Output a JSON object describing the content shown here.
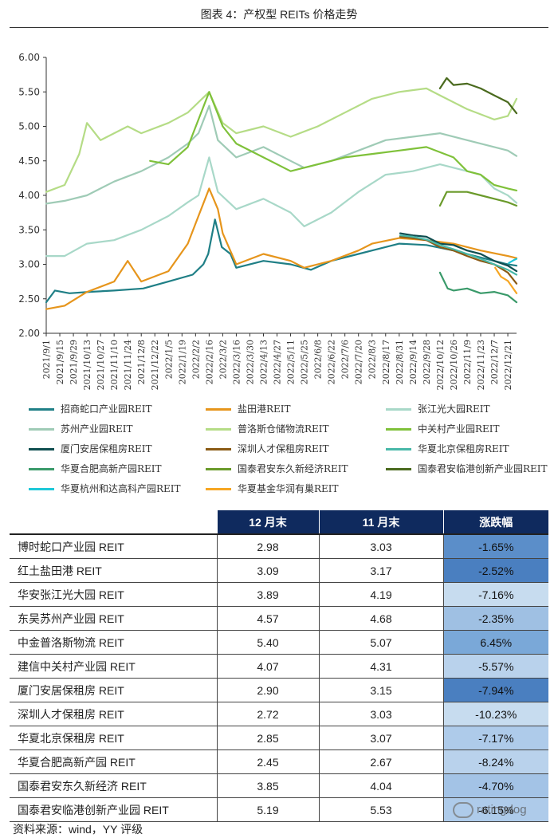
{
  "title": "图表 4：产权型 REITs 价格走势",
  "source": "资料来源：wind，YY 评级",
  "watermark": "ratingdog",
  "chart_data": {
    "type": "line",
    "ylim": [
      2.0,
      6.0
    ],
    "yticks": [
      "2.00",
      "2.50",
      "3.00",
      "3.50",
      "4.00",
      "4.50",
      "5.00",
      "5.50",
      "6.00"
    ],
    "x_start": "2021-09-01",
    "x_end": "2022-12-30",
    "xticks": [
      "2021/9/1",
      "2021/9/15",
      "2021/9/29",
      "2021/10/13",
      "2021/10/27",
      "2021/11/10",
      "2021/11/24",
      "2021/12/8",
      "2021/12/22",
      "2022/1/5",
      "2022/1/19",
      "2022/2/2",
      "2022/2/16",
      "2022/3/2",
      "2022/3/16",
      "2022/3/30",
      "2022/4/13",
      "2022/4/27",
      "2022/5/11",
      "2022/5/25",
      "2022/6/8",
      "2022/6/22",
      "2022/7/6",
      "2022/7/20",
      "2022/8/3",
      "2022/8/17",
      "2022/8/31",
      "2022/9/14",
      "2022/9/28",
      "2022/10/12",
      "2022/10/26",
      "2022/11/9",
      "2022/11/23",
      "2022/12/7",
      "2022/12/21"
    ],
    "series": [
      {
        "name": "招商蛇口产业园REIT",
        "color": "#1f7f86",
        "points": [
          [
            "2021-09-01",
            2.45
          ],
          [
            "2021-09-10",
            2.62
          ],
          [
            "2021-09-25",
            2.58
          ],
          [
            "2021-10-15",
            2.6
          ],
          [
            "2021-11-10",
            2.62
          ],
          [
            "2021-12-10",
            2.65
          ],
          [
            "2022-01-05",
            2.75
          ],
          [
            "2022-01-30",
            2.85
          ],
          [
            "2022-02-10",
            3.0
          ],
          [
            "2022-02-15",
            3.15
          ],
          [
            "2022-02-22",
            3.65
          ],
          [
            "2022-03-01",
            3.25
          ],
          [
            "2022-03-10",
            3.15
          ],
          [
            "2022-03-16",
            2.95
          ],
          [
            "2022-04-13",
            3.05
          ],
          [
            "2022-05-11",
            3.0
          ],
          [
            "2022-06-01",
            2.92
          ],
          [
            "2022-06-22",
            3.05
          ],
          [
            "2022-07-20",
            3.15
          ],
          [
            "2022-08-03",
            3.2
          ],
          [
            "2022-08-31",
            3.3
          ],
          [
            "2022-09-28",
            3.28
          ],
          [
            "2022-10-26",
            3.2
          ],
          [
            "2022-11-23",
            3.1
          ],
          [
            "2022-12-21",
            3.0
          ],
          [
            "2022-12-30",
            2.98
          ]
        ]
      },
      {
        "name": "盐田港REIT",
        "color": "#e6951c",
        "points": [
          [
            "2021-09-01",
            2.35
          ],
          [
            "2021-09-20",
            2.4
          ],
          [
            "2021-10-13",
            2.6
          ],
          [
            "2021-11-10",
            2.75
          ],
          [
            "2021-11-24",
            3.05
          ],
          [
            "2021-12-08",
            2.75
          ],
          [
            "2022-01-05",
            2.9
          ],
          [
            "2022-01-25",
            3.3
          ],
          [
            "2022-02-05",
            3.7
          ],
          [
            "2022-02-16",
            4.1
          ],
          [
            "2022-02-25",
            3.8
          ],
          [
            "2022-03-02",
            3.45
          ],
          [
            "2022-03-16",
            3.0
          ],
          [
            "2022-04-13",
            3.15
          ],
          [
            "2022-05-11",
            3.05
          ],
          [
            "2022-05-25",
            2.95
          ],
          [
            "2022-06-22",
            3.05
          ],
          [
            "2022-07-20",
            3.2
          ],
          [
            "2022-08-03",
            3.3
          ],
          [
            "2022-08-31",
            3.38
          ],
          [
            "2022-09-28",
            3.35
          ],
          [
            "2022-10-26",
            3.3
          ],
          [
            "2022-11-23",
            3.2
          ],
          [
            "2022-12-21",
            3.12
          ],
          [
            "2022-12-30",
            3.09
          ]
        ]
      },
      {
        "name": "张江光大园REIT",
        "color": "#a8d8c8",
        "points": [
          [
            "2021-09-01",
            3.12
          ],
          [
            "2021-09-20",
            3.12
          ],
          [
            "2021-10-13",
            3.3
          ],
          [
            "2021-11-10",
            3.35
          ],
          [
            "2021-12-08",
            3.5
          ],
          [
            "2022-01-05",
            3.7
          ],
          [
            "2022-01-25",
            3.9
          ],
          [
            "2022-02-05",
            4.0
          ],
          [
            "2022-02-16",
            4.55
          ],
          [
            "2022-02-25",
            4.05
          ],
          [
            "2022-03-16",
            3.8
          ],
          [
            "2022-04-13",
            3.95
          ],
          [
            "2022-05-11",
            3.75
          ],
          [
            "2022-05-25",
            3.55
          ],
          [
            "2022-06-22",
            3.75
          ],
          [
            "2022-07-20",
            4.05
          ],
          [
            "2022-08-17",
            4.3
          ],
          [
            "2022-09-14",
            4.35
          ],
          [
            "2022-10-12",
            4.45
          ],
          [
            "2022-11-09",
            4.35
          ],
          [
            "2022-11-23",
            4.3
          ],
          [
            "2022-12-07",
            4.1
          ],
          [
            "2022-12-21",
            4.0
          ],
          [
            "2022-12-30",
            3.89
          ]
        ]
      },
      {
        "name": "苏州产业园REIT",
        "color": "#9fcbb6",
        "points": [
          [
            "2021-09-01",
            3.88
          ],
          [
            "2021-09-20",
            3.92
          ],
          [
            "2021-10-13",
            4.0
          ],
          [
            "2021-11-10",
            4.2
          ],
          [
            "2021-12-08",
            4.35
          ],
          [
            "2022-01-05",
            4.55
          ],
          [
            "2022-01-25",
            4.75
          ],
          [
            "2022-02-05",
            4.9
          ],
          [
            "2022-02-16",
            5.3
          ],
          [
            "2022-02-25",
            4.8
          ],
          [
            "2022-03-16",
            4.55
          ],
          [
            "2022-04-13",
            4.7
          ],
          [
            "2022-05-11",
            4.5
          ],
          [
            "2022-05-25",
            4.4
          ],
          [
            "2022-06-22",
            4.5
          ],
          [
            "2022-07-20",
            4.65
          ],
          [
            "2022-08-17",
            4.8
          ],
          [
            "2022-09-14",
            4.85
          ],
          [
            "2022-10-12",
            4.9
          ],
          [
            "2022-11-09",
            4.8
          ],
          [
            "2022-12-07",
            4.7
          ],
          [
            "2022-12-21",
            4.65
          ],
          [
            "2022-12-30",
            4.57
          ]
        ]
      },
      {
        "name": "普洛斯仓储物流REIT",
        "color": "#b5dc86",
        "points": [
          [
            "2021-09-01",
            4.05
          ],
          [
            "2021-09-20",
            4.15
          ],
          [
            "2021-10-05",
            4.6
          ],
          [
            "2021-10-13",
            5.05
          ],
          [
            "2021-10-27",
            4.8
          ],
          [
            "2021-11-10",
            4.9
          ],
          [
            "2021-11-24",
            5.0
          ],
          [
            "2021-12-08",
            4.9
          ],
          [
            "2022-01-05",
            5.05
          ],
          [
            "2022-01-25",
            5.2
          ],
          [
            "2022-02-16",
            5.5
          ],
          [
            "2022-03-02",
            5.05
          ],
          [
            "2022-03-16",
            4.9
          ],
          [
            "2022-04-13",
            5.0
          ],
          [
            "2022-05-11",
            4.85
          ],
          [
            "2022-06-08",
            5.0
          ],
          [
            "2022-07-06",
            5.2
          ],
          [
            "2022-08-03",
            5.4
          ],
          [
            "2022-08-31",
            5.5
          ],
          [
            "2022-09-28",
            5.55
          ],
          [
            "2022-10-12",
            5.45
          ],
          [
            "2022-11-09",
            5.25
          ],
          [
            "2022-12-07",
            5.1
          ],
          [
            "2022-12-21",
            5.15
          ],
          [
            "2022-12-30",
            5.4
          ]
        ]
      },
      {
        "name": "中关村产业园REIT",
        "color": "#7fc13a",
        "points": [
          [
            "2021-12-17",
            4.5
          ],
          [
            "2022-01-05",
            4.45
          ],
          [
            "2022-01-25",
            4.7
          ],
          [
            "2022-02-16",
            5.5
          ],
          [
            "2022-03-02",
            5.0
          ],
          [
            "2022-03-16",
            4.75
          ],
          [
            "2022-04-13",
            4.55
          ],
          [
            "2022-05-11",
            4.35
          ],
          [
            "2022-06-08",
            4.45
          ],
          [
            "2022-07-06",
            4.55
          ],
          [
            "2022-08-03",
            4.6
          ],
          [
            "2022-08-31",
            4.65
          ],
          [
            "2022-09-28",
            4.7
          ],
          [
            "2022-10-26",
            4.55
          ],
          [
            "2022-11-09",
            4.35
          ],
          [
            "2022-11-23",
            4.3
          ],
          [
            "2022-12-07",
            4.15
          ],
          [
            "2022-12-21",
            4.1
          ],
          [
            "2022-12-30",
            4.07
          ]
        ]
      },
      {
        "name": "厦门安居保租房REIT",
        "color": "#0f4e50",
        "points": [
          [
            "2022-09-01",
            3.45
          ],
          [
            "2022-09-14",
            3.42
          ],
          [
            "2022-09-28",
            3.4
          ],
          [
            "2022-10-12",
            3.3
          ],
          [
            "2022-10-26",
            3.28
          ],
          [
            "2022-11-09",
            3.2
          ],
          [
            "2022-11-23",
            3.15
          ],
          [
            "2022-12-07",
            3.05
          ],
          [
            "2022-12-21",
            2.98
          ],
          [
            "2022-12-30",
            2.9
          ]
        ]
      },
      {
        "name": "深圳人才保租房REIT",
        "color": "#8a5a14",
        "points": [
          [
            "2022-09-01",
            3.4
          ],
          [
            "2022-09-14",
            3.38
          ],
          [
            "2022-09-28",
            3.35
          ],
          [
            "2022-10-12",
            3.25
          ],
          [
            "2022-10-26",
            3.2
          ],
          [
            "2022-11-09",
            3.12
          ],
          [
            "2022-11-23",
            3.05
          ],
          [
            "2022-12-07",
            3.0
          ],
          [
            "2022-12-21",
            2.88
          ],
          [
            "2022-12-30",
            2.72
          ]
        ]
      },
      {
        "name": "华夏北京保租房REIT",
        "color": "#48b8a8",
        "points": [
          [
            "2022-09-01",
            3.42
          ],
          [
            "2022-09-14",
            3.4
          ],
          [
            "2022-09-28",
            3.36
          ],
          [
            "2022-10-12",
            3.28
          ],
          [
            "2022-10-26",
            3.22
          ],
          [
            "2022-11-09",
            3.15
          ],
          [
            "2022-11-23",
            3.08
          ],
          [
            "2022-12-07",
            3.0
          ],
          [
            "2022-12-21",
            2.92
          ],
          [
            "2022-12-30",
            2.85
          ]
        ]
      },
      {
        "name": "华夏合肥高新产园REIT",
        "color": "#3a9a6a",
        "points": [
          [
            "2022-10-12",
            2.88
          ],
          [
            "2022-10-20",
            2.65
          ],
          [
            "2022-10-26",
            2.62
          ],
          [
            "2022-11-09",
            2.65
          ],
          [
            "2022-11-23",
            2.58
          ],
          [
            "2022-12-07",
            2.6
          ],
          [
            "2022-12-21",
            2.55
          ],
          [
            "2022-12-30",
            2.45
          ]
        ]
      },
      {
        "name": "国泰君安东久新经济REIT",
        "color": "#6a9a2a",
        "points": [
          [
            "2022-10-12",
            3.85
          ],
          [
            "2022-10-19",
            4.05
          ],
          [
            "2022-10-26",
            4.05
          ],
          [
            "2022-11-09",
            4.05
          ],
          [
            "2022-11-23",
            4.0
          ],
          [
            "2022-12-07",
            3.95
          ],
          [
            "2022-12-21",
            3.9
          ],
          [
            "2022-12-30",
            3.85
          ]
        ]
      },
      {
        "name": "国泰君安临港创新产业园REIT",
        "color": "#4a6a1e",
        "points": [
          [
            "2022-10-12",
            5.55
          ],
          [
            "2022-10-19",
            5.7
          ],
          [
            "2022-10-26",
            5.6
          ],
          [
            "2022-11-09",
            5.62
          ],
          [
            "2022-11-23",
            5.55
          ],
          [
            "2022-12-07",
            5.45
          ],
          [
            "2022-12-21",
            5.35
          ],
          [
            "2022-12-30",
            5.19
          ]
        ]
      },
      {
        "name": "华夏杭州和达高科产园REIT",
        "color": "#1ec8d8",
        "points": [
          [
            "2022-12-22",
            3.02
          ],
          [
            "2022-12-27",
            3.06
          ],
          [
            "2022-12-30",
            3.08
          ]
        ]
      },
      {
        "name": "华夏基金华润有巢REIT",
        "color": "#f6a623",
        "points": [
          [
            "2022-12-08",
            2.95
          ],
          [
            "2022-12-14",
            2.82
          ],
          [
            "2022-12-21",
            2.76
          ],
          [
            "2022-12-30",
            2.58
          ]
        ]
      }
    ]
  },
  "table": {
    "headers": [
      "",
      "12 月末",
      "11 月末",
      "涨跌幅"
    ],
    "rows": [
      {
        "name": "博时蛇口产业园 REIT",
        "dec": "2.98",
        "nov": "3.03",
        "chg": "-1.65%",
        "color": "#5b8ec9"
      },
      {
        "name": "红土盐田港 REIT",
        "dec": "3.09",
        "nov": "3.17",
        "chg": "-2.52%",
        "color": "#4a7fc0"
      },
      {
        "name": "华安张江光大园 REIT",
        "dec": "3.89",
        "nov": "4.19",
        "chg": "-7.16%",
        "color": "#c7dcef"
      },
      {
        "name": "东吴苏州产业园 REIT",
        "dec": "4.57",
        "nov": "4.68",
        "chg": "-2.35%",
        "color": "#9fc0e3"
      },
      {
        "name": "中金普洛斯物流 REIT",
        "dec": "5.40",
        "nov": "5.07",
        "chg": "6.45%",
        "color": "#7aa8d8"
      },
      {
        "name": "建信中关村产业园 REIT",
        "dec": "4.07",
        "nov": "4.31",
        "chg": "-5.57%",
        "color": "#b9d2ec"
      },
      {
        "name": "厦门安居保租房 REIT",
        "dec": "2.90",
        "nov": "3.15",
        "chg": "-7.94%",
        "color": "#4a7fc0"
      },
      {
        "name": "深圳人才保租房 REIT",
        "dec": "2.72",
        "nov": "3.03",
        "chg": "-10.23%",
        "color": "#c7dcef"
      },
      {
        "name": "华夏北京保租房 REIT",
        "dec": "2.85",
        "nov": "3.07",
        "chg": "-7.17%",
        "color": "#aecbea"
      },
      {
        "name": "华夏合肥高新产园 REIT",
        "dec": "2.45",
        "nov": "2.67",
        "chg": "-8.24%",
        "color": "#b9d2ec"
      },
      {
        "name": "国泰君安东久新经济 REIT",
        "dec": "3.85",
        "nov": "4.04",
        "chg": "-4.70%",
        "color": "#a3c3e6"
      },
      {
        "name": "国泰君安临港创新产业园 REIT",
        "dec": "5.19",
        "nov": "5.53",
        "chg": "-6.15%",
        "color": "#aecbea"
      }
    ]
  }
}
